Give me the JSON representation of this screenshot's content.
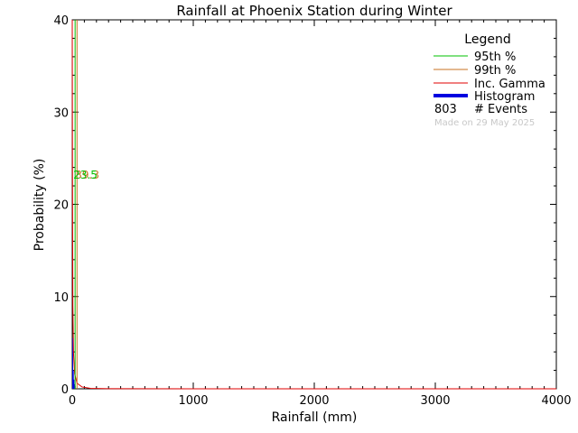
{
  "chart_data": {
    "type": "bar",
    "title": "Rainfall at Phoenix Station during Winter",
    "xlabel": "Rainfall (mm)",
    "ylabel": "Probability (%)",
    "xlim": [
      0,
      4000
    ],
    "ylim": [
      0,
      40
    ],
    "xticks": [
      0,
      1000,
      2000,
      3000,
      4000
    ],
    "yticks": [
      0,
      10,
      20,
      30,
      40
    ],
    "grid": false,
    "legend_position": "top-right",
    "legend": {
      "title": "Legend",
      "items": [
        {
          "label": "95th %",
          "color": "#00c000",
          "style": "line"
        },
        {
          "label": "99th %",
          "color": "#c87020",
          "style": "line"
        },
        {
          "label": "Inc. Gamma",
          "color": "#e00000",
          "style": "line"
        },
        {
          "label": "Histogram",
          "color": "#0000e0",
          "style": "thick-line"
        }
      ],
      "events_count": "803",
      "events_label": "# Events",
      "made_on": "Made on 29 May 2025"
    },
    "percentile_95": {
      "value": 23.5,
      "label": "23.5",
      "color": "#00c000"
    },
    "percentile_99": {
      "value": 39.3,
      "label": "39.3",
      "color": "#c87020"
    },
    "histogram": {
      "bin_width": 5,
      "bins": [
        {
          "x": 0,
          "y": 5.5
        },
        {
          "x": 5,
          "y": 2.0
        },
        {
          "x": 10,
          "y": 1.0
        },
        {
          "x": 15,
          "y": 0.5
        },
        {
          "x": 20,
          "y": 0.3
        }
      ],
      "color": "#0000e0"
    },
    "gamma_curve": {
      "x": [
        0,
        2,
        5,
        10,
        20,
        40,
        80,
        150,
        300,
        1000,
        4000
      ],
      "y": [
        40,
        23,
        9,
        4,
        1.6,
        0.6,
        0.2,
        0.05,
        0.01,
        0,
        0
      ],
      "color": "#e00000"
    }
  }
}
